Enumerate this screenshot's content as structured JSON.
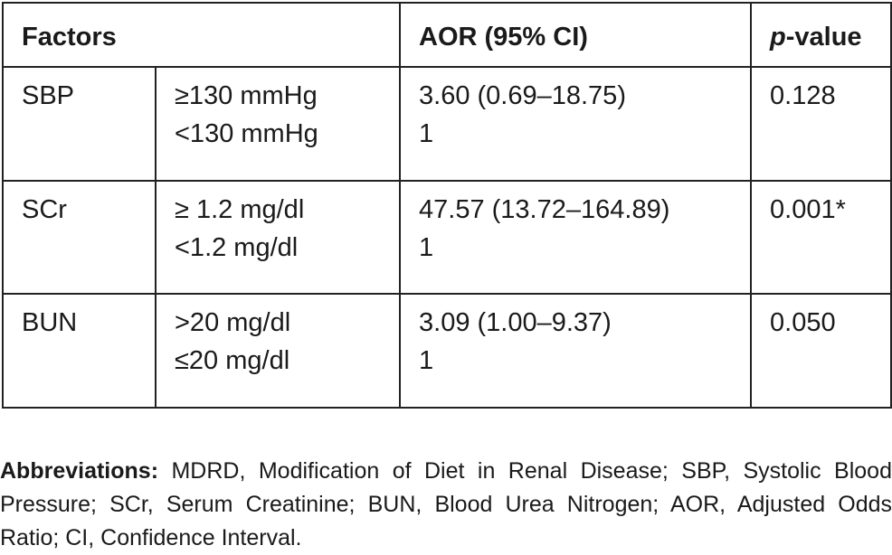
{
  "table": {
    "headers": {
      "factors": "Factors",
      "aor": "AOR (95% CI)",
      "p_italic": "p",
      "p_rest": "-value"
    },
    "rows": [
      {
        "factor": "SBP",
        "levels": [
          "≥130 mmHg",
          "<130 mmHg"
        ],
        "aor": [
          "3.60 (0.69–18.75)",
          "1"
        ],
        "p": "0.128"
      },
      {
        "factor": "SCr",
        "levels": [
          "≥ 1.2 mg/dl",
          "<1.2 mg/dl"
        ],
        "aor": [
          "47.57 (13.72–164.89)",
          "1"
        ],
        "p": "0.001*"
      },
      {
        "factor": "BUN",
        "levels": [
          ">20 mg/dl",
          "≤20 mg/dl"
        ],
        "aor": [
          "3.09 (1.00–9.37)",
          "1"
        ],
        "p": "0.050"
      }
    ]
  },
  "footnote": {
    "label": "Abbreviations:",
    "text": " MDRD, Modification of Diet in Renal Disease; SBP, Systolic Blood Pressure; SCr, Serum Creatinine; BUN, Blood Urea Nitrogen; AOR, Adjusted Odds Ratio; CI, Confidence Interval."
  }
}
